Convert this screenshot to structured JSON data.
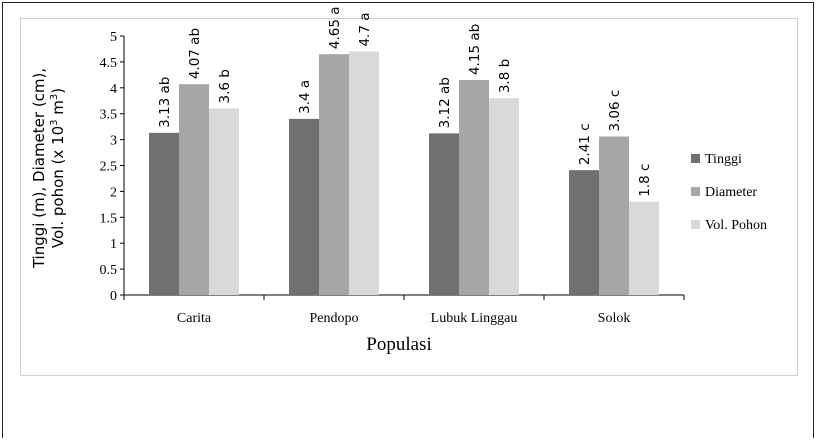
{
  "chart_data": {
    "type": "bar",
    "categories": [
      "Carita",
      "Pendopo",
      "Lubuk Linggau",
      "Solok"
    ],
    "series": [
      {
        "name": "Tinggi",
        "values": [
          3.13,
          3.4,
          3.12,
          2.41
        ],
        "labels": [
          "3.13 ab",
          "3.4 a",
          "3.12 ab",
          "2.41 c"
        ],
        "color": "#707070"
      },
      {
        "name": "Diameter",
        "values": [
          4.07,
          4.65,
          4.15,
          3.06
        ],
        "labels": [
          "4.07 ab",
          "4.65 a",
          "4.15 ab",
          "3.06 c"
        ],
        "color": "#a6a6a6"
      },
      {
        "name": "Vol. Pohon",
        "values": [
          3.6,
          4.7,
          3.8,
          1.8
        ],
        "labels": [
          "3.6 b",
          "4.7 a",
          "3.8 b",
          "1.8  c"
        ],
        "color": "#d9d9d9"
      }
    ],
    "yticks": [
      "0",
      "0.5",
      "1",
      "1.5",
      "2",
      "2.5",
      "3",
      "3.5",
      "4",
      "4.5",
      "5"
    ],
    "ylim": [
      0,
      5
    ],
    "xlabel": "Populasi",
    "ylabel": {
      "line1": "Tinggi (m), Diameter (cm),",
      "line2_pre": "Vol. pohon (x 10",
      "line2_sup1": "3",
      "line2_mid": " m",
      "line2_sup2": "3",
      "line2_post": ")"
    },
    "grid": false,
    "legend_position": "right"
  }
}
